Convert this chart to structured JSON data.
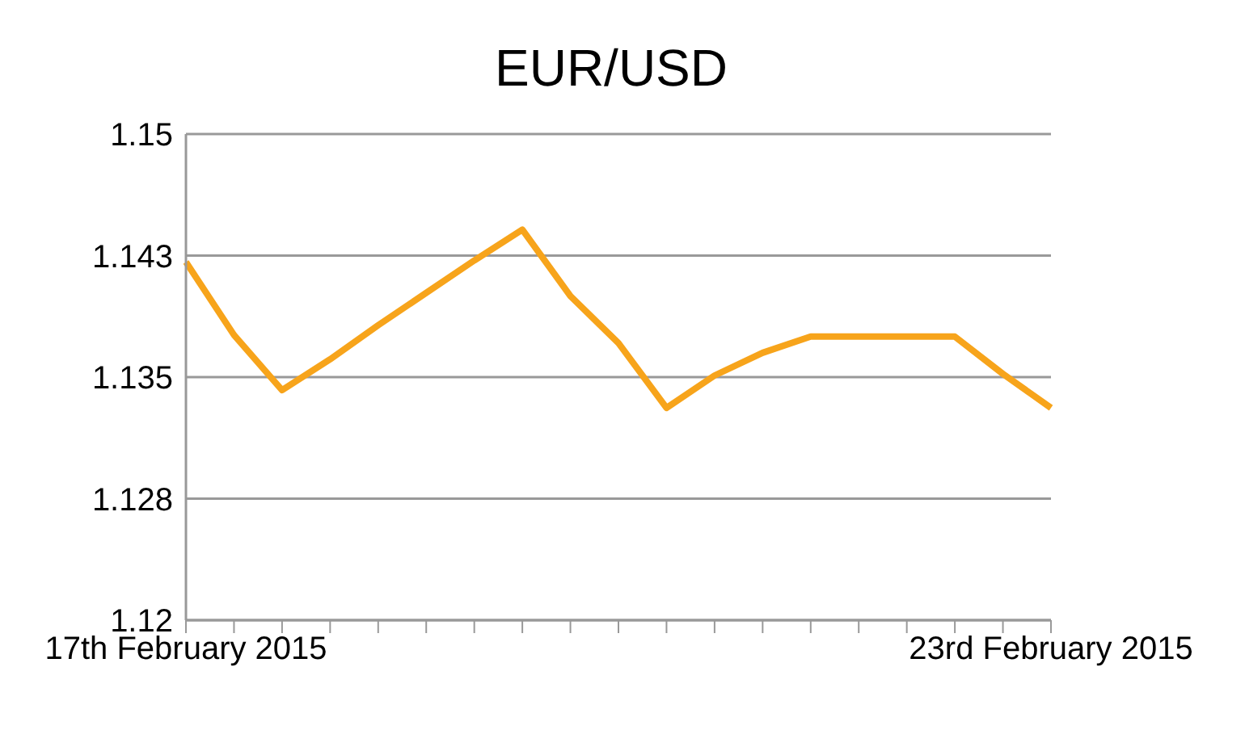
{
  "chart_data": {
    "type": "line",
    "title": "EUR/USD",
    "categories": [
      "17th February 2015",
      null,
      null,
      null,
      null,
      null,
      null,
      null,
      null,
      null,
      null,
      null,
      null,
      null,
      null,
      null,
      null,
      null,
      "23rd February 2015"
    ],
    "series": [
      {
        "color": "#f7a41b",
        "values": [
          1.1421,
          1.1376,
          1.1342,
          1.1361,
          1.1382,
          1.1402,
          1.1422,
          1.1441,
          1.14,
          1.1371,
          1.1331,
          1.1351,
          1.1365,
          1.1375,
          1.1375,
          1.1375,
          1.1375,
          1.1352,
          1.1331
        ]
      }
    ],
    "ylim": [
      1.12,
      1.15
    ],
    "yticks": [
      1.12,
      {
        "value": 1.1275,
        "label": "1.128"
      },
      1.135,
      {
        "value": 1.1425,
        "label": "1.143"
      },
      1.15
    ],
    "grid": "y",
    "legend": false,
    "marker": "none",
    "line_style": "solid"
  }
}
